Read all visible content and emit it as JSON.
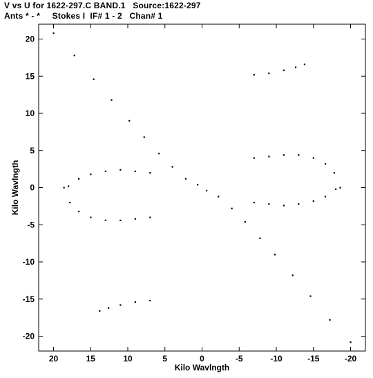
{
  "chart_data": {
    "type": "scatter",
    "title": "V vs U for 1622-297.C BAND.1   Source:1622-297",
    "subtitle": "Ants * - *     Stokes I  IF# 1 - 2   Chan# 1",
    "xlabel": "Kilo Wavlngth",
    "ylabel": "Kilo Wavlngth",
    "xlim": [
      22,
      -22
    ],
    "ylim": [
      -22,
      22
    ],
    "x_ticks": [
      20,
      15,
      10,
      5,
      0,
      -5,
      -10,
      -15,
      -20
    ],
    "y_ticks": [
      20,
      15,
      10,
      5,
      0,
      -5,
      -10,
      -15,
      -20
    ],
    "x_tick_labels": [
      "20",
      "15",
      "10",
      "5",
      "0",
      "-5",
      "-10",
      "-15",
      "-20"
    ],
    "y_tick_labels": [
      "20",
      "15",
      "10",
      "5",
      "0",
      "-5",
      "-10",
      "-15",
      "-20"
    ],
    "grid": false,
    "marker_color": "#000000",
    "series": [
      {
        "name": "",
        "tracks": [
          {
            "x": [
              20.0,
              17.2,
              14.6,
              12.2,
              9.8,
              7.8,
              5.8,
              4.0,
              2.2,
              0.6
            ],
            "y": [
              20.8,
              17.8,
              14.6,
              11.8,
              9.0,
              6.8,
              4.6,
              2.8,
              1.2,
              0.4
            ]
          },
          {
            "x": [
              -20.0,
              -17.2,
              -14.6,
              -12.2,
              -9.8,
              -7.8,
              -5.8,
              -4.0,
              -2.2,
              -0.6
            ],
            "y": [
              -20.8,
              -17.8,
              -14.6,
              -11.8,
              -9.0,
              -6.8,
              -4.6,
              -2.8,
              -1.2,
              -0.4
            ]
          },
          {
            "x": [
              -7.0,
              -9.0,
              -11.0,
              -12.6,
              -13.8
            ],
            "y": [
              15.2,
              15.4,
              15.8,
              16.2,
              16.6
            ]
          },
          {
            "x": [
              7.0,
              9.0,
              11.0,
              12.6,
              13.8
            ],
            "y": [
              -15.2,
              -15.4,
              -15.8,
              -16.2,
              -16.6
            ]
          },
          {
            "x": [
              -18.6,
              -17.8,
              -16.6,
              -15.0,
              -13.0,
              -11.0,
              -9.0,
              -7.0
            ],
            "y": [
              0.0,
              2.0,
              3.2,
              4.0,
              4.4,
              4.4,
              4.2,
              4.0
            ]
          },
          {
            "x": [
              18.6,
              17.8,
              16.6,
              15.0,
              13.0,
              11.0,
              9.0,
              7.0
            ],
            "y": [
              0.0,
              -2.0,
              -3.2,
              -4.0,
              -4.4,
              -4.4,
              -4.2,
              -4.0
            ]
          },
          {
            "x": [
              18.0,
              16.6,
              15.0,
              13.0,
              11.0,
              9.0,
              7.0
            ],
            "y": [
              0.2,
              1.2,
              1.8,
              2.2,
              2.4,
              2.2,
              2.0
            ]
          },
          {
            "x": [
              -18.0,
              -16.6,
              -15.0,
              -13.0,
              -11.0,
              -9.0,
              -7.0
            ],
            "y": [
              -0.2,
              -1.2,
              -1.8,
              -2.2,
              -2.4,
              -2.2,
              -2.0
            ]
          }
        ]
      }
    ]
  }
}
